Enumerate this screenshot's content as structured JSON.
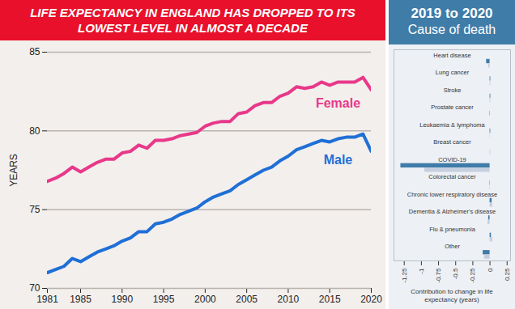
{
  "chart_data": [
    {
      "type": "line",
      "title": "LIFE EXPECTANCY IN ENGLAND HAS DROPPED TO ITS LOWEST LEVEL IN ALMOST A DECADE",
      "ylabel": "YEARS",
      "x": [
        1981,
        1982,
        1983,
        1984,
        1985,
        1986,
        1987,
        1988,
        1989,
        1990,
        1991,
        1992,
        1993,
        1994,
        1995,
        1996,
        1997,
        1998,
        1999,
        2000,
        2001,
        2002,
        2003,
        2004,
        2005,
        2006,
        2007,
        2008,
        2009,
        2010,
        2011,
        2012,
        2013,
        2014,
        2015,
        2016,
        2017,
        2018,
        2019,
        2020
      ],
      "series": [
        {
          "name": "Female",
          "color": "#e8388a",
          "values": [
            76.8,
            77.0,
            77.3,
            77.7,
            77.4,
            77.7,
            78.0,
            78.2,
            78.2,
            78.6,
            78.7,
            79.1,
            78.9,
            79.4,
            79.4,
            79.5,
            79.7,
            79.8,
            79.9,
            80.3,
            80.5,
            80.6,
            80.6,
            81.1,
            81.2,
            81.6,
            81.8,
            81.8,
            82.2,
            82.4,
            82.8,
            82.7,
            82.8,
            83.1,
            82.9,
            83.1,
            83.1,
            83.1,
            83.4,
            82.6
          ]
        },
        {
          "name": "Male",
          "color": "#1f6fd6",
          "values": [
            71.0,
            71.2,
            71.4,
            71.9,
            71.7,
            72.0,
            72.3,
            72.5,
            72.7,
            73.0,
            73.2,
            73.6,
            73.6,
            74.1,
            74.2,
            74.4,
            74.7,
            74.9,
            75.1,
            75.5,
            75.8,
            76.0,
            76.2,
            76.6,
            76.9,
            77.2,
            77.5,
            77.7,
            78.1,
            78.4,
            78.8,
            79.0,
            79.2,
            79.4,
            79.3,
            79.5,
            79.6,
            79.6,
            79.8,
            78.7
          ]
        }
      ],
      "xlim": [
        1981,
        2020
      ],
      "xticks": [
        1981,
        1985,
        1990,
        1995,
        2000,
        2005,
        2010,
        2015,
        2020
      ],
      "ylim": [
        70,
        85
      ],
      "yticks": [
        70,
        75,
        80,
        85
      ],
      "grid": true
    },
    {
      "type": "bar",
      "orientation": "horizontal",
      "title": "2019 to 2020",
      "subtitle": "Cause of death",
      "xlabel": "Contribution to change in life expectancy (years)",
      "categories": [
        "Heart disease",
        "Lung cancer",
        "Stroke",
        "Prostate cancer",
        "Leukaemia & lymphoma",
        "Breast cancer",
        "COVID-19",
        "Colorectal cancer",
        "Chronic lower respiratory disease",
        "Dementia & Alzheimer's disease",
        "Flu & pneumonia",
        "Other"
      ],
      "series": [
        {
          "color": "#3f7ca8",
          "values": [
            -0.05,
            0.01,
            0.01,
            0.005,
            0.01,
            0,
            -1.3,
            0.005,
            0.03,
            -0.02,
            0.02,
            -0.1
          ]
        },
        {
          "color": "#c5cfdf",
          "values": [
            -0.02,
            0.01,
            0.01,
            0,
            0.005,
            0.01,
            -0.95,
            0.005,
            0.04,
            -0.03,
            0.04,
            -0.08
          ]
        }
      ],
      "xlim": [
        -1.4,
        0.3
      ],
      "xticks": [
        -1.25,
        -1,
        -0.75,
        -0.5,
        -0.25,
        0,
        0.25
      ]
    }
  ]
}
